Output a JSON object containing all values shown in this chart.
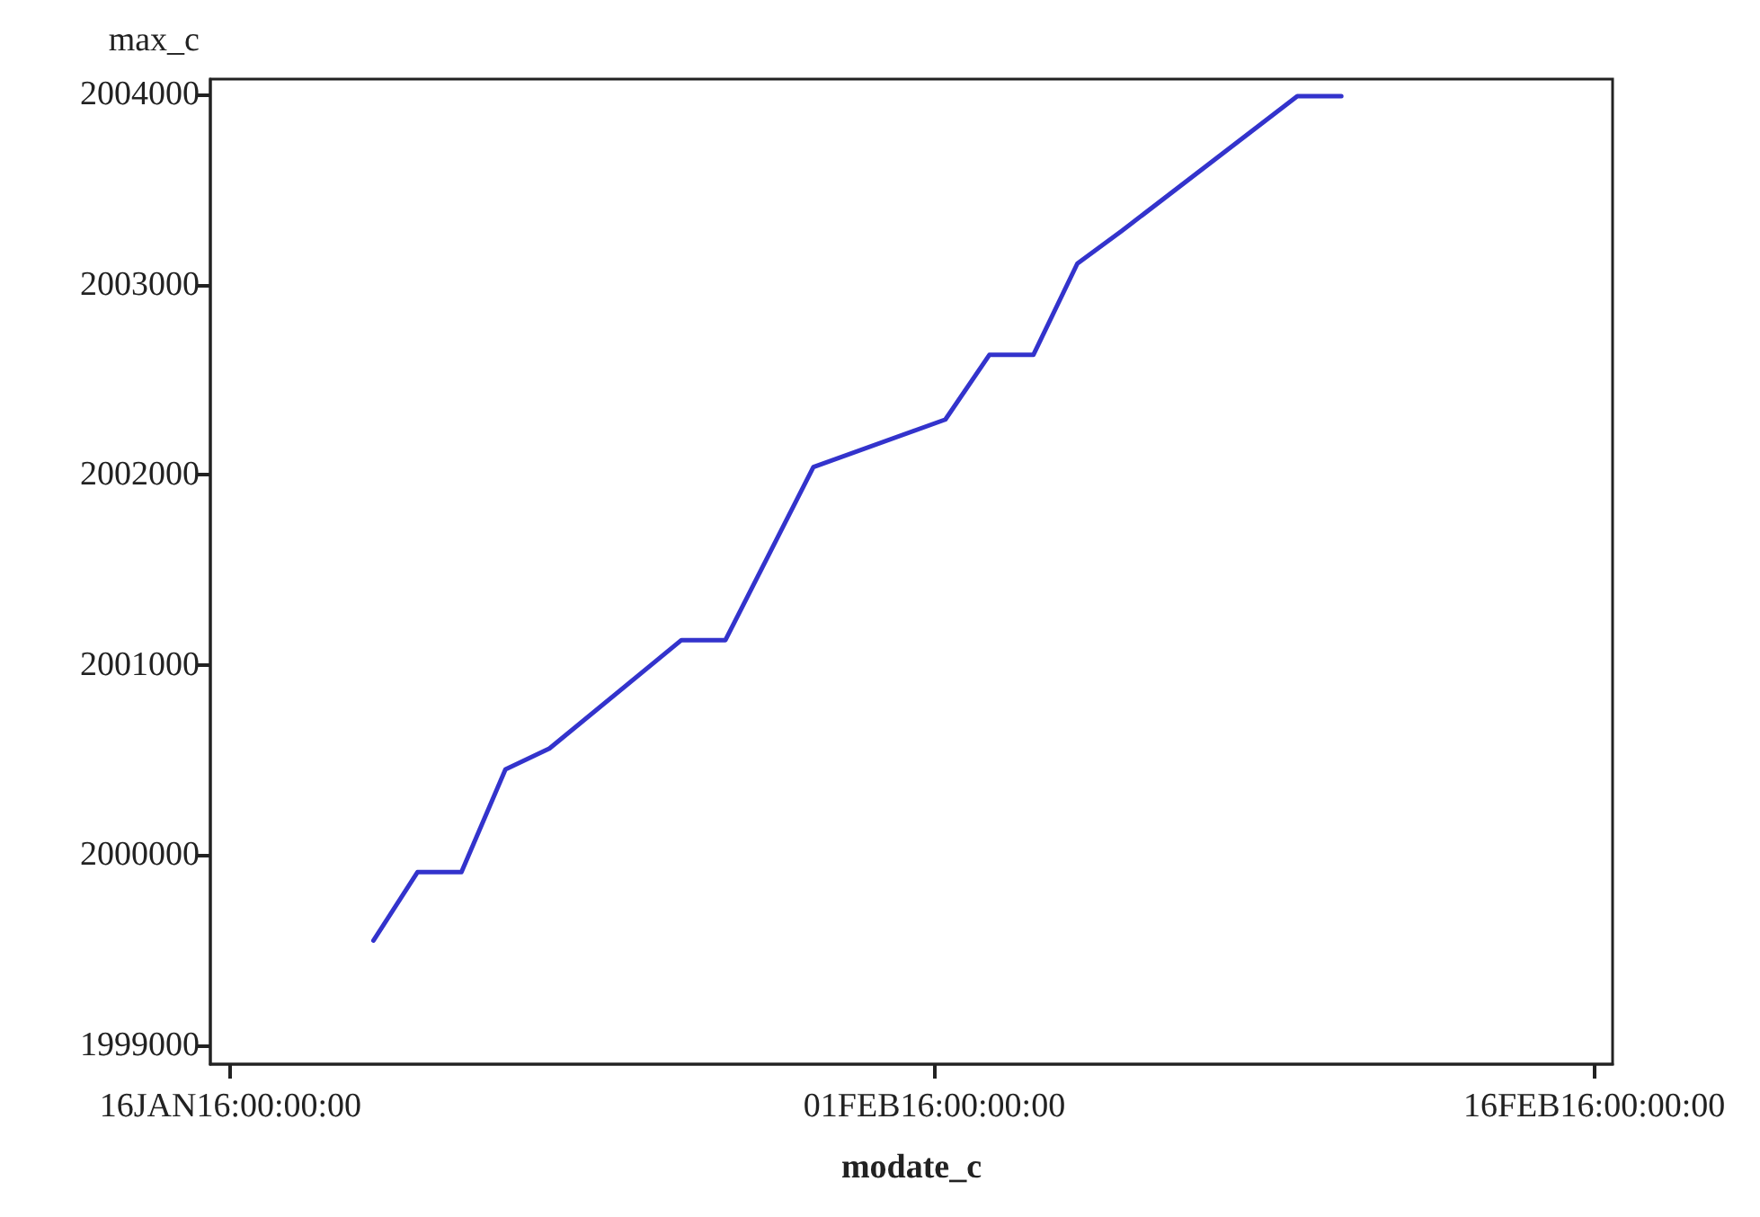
{
  "chart_data": {
    "type": "line",
    "xlabel": "modate_c",
    "ylabel": "max_c",
    "x": [
      "2016-01-19T06:00",
      "2016-01-20T06:00",
      "2016-01-21T06:00",
      "2016-01-22T06:00",
      "2016-01-23T06:00",
      "2016-01-26T06:00",
      "2016-01-27T06:00",
      "2016-01-29T06:00",
      "2016-02-01T06:00",
      "2016-02-02T06:00",
      "2016-02-03T06:00",
      "2016-02-04T06:00",
      "2016-02-05T06:00",
      "2016-02-09T06:00",
      "2016-02-10T06:00"
    ],
    "series": [
      {
        "color": "#3333cc",
        "values": [
          1999550,
          1999910,
          1999910,
          2000450,
          2000560,
          2001130,
          2001130,
          2002040,
          2002290,
          2002630,
          2002630,
          2003110,
          2003280,
          2003990,
          2003990
        ]
      }
    ],
    "xlim": [
      "2016-01-15T13:00",
      "2016-02-16T10:00"
    ],
    "xticks": [
      {
        "value": "2016-01-16",
        "label": "16JAN16:00:00:00"
      },
      {
        "value": "2016-02-01",
        "label": "01FEB16:00:00:00"
      },
      {
        "value": "2016-02-16",
        "label": "16FEB16:00:00:00"
      }
    ],
    "ylim": [
      1998900,
      2004080
    ],
    "yticks": [
      1999000,
      2000000,
      2001000,
      2002000,
      2003000,
      2004000
    ],
    "grid": false,
    "marker": "none"
  }
}
